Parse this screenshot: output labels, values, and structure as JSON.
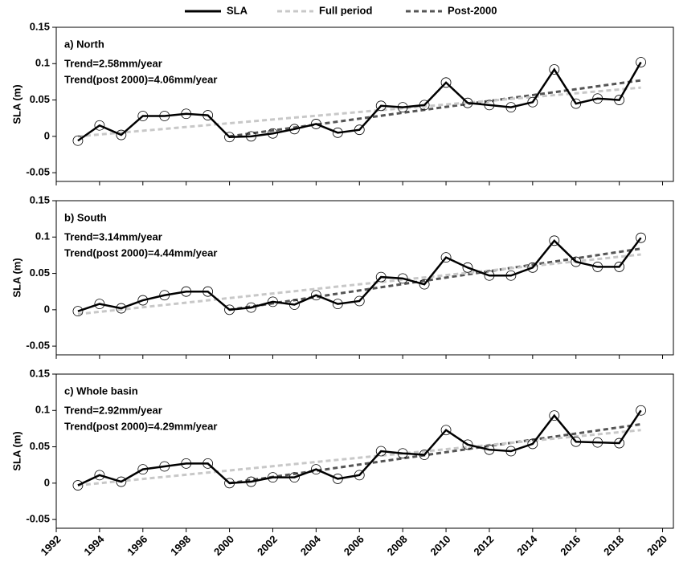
{
  "chart_data": [
    {
      "type": "line",
      "title": "a) North",
      "annotations": [
        "Trend=2.58mm/year",
        "Trend(post 2000)=4.06mm/year"
      ],
      "ylabel": "SLA (m)",
      "xlim": [
        1992,
        2020.5
      ],
      "xticks": [
        1992,
        1994,
        1996,
        1998,
        2000,
        2002,
        2004,
        2006,
        2008,
        2010,
        2012,
        2014,
        2016,
        2018,
        2020
      ],
      "ylim": [
        -0.062,
        0.15
      ],
      "yticks": [
        0.15,
        0.1,
        0.05,
        0,
        -0.05
      ],
      "series": [
        {
          "name": "SLA",
          "color": "#000000",
          "dash": "solid",
          "markers": true,
          "x": [
            1993,
            1994,
            1995,
            1996,
            1997,
            1998,
            1999,
            2000,
            2001,
            2002,
            2003,
            2004,
            2005,
            2006,
            2007,
            2008,
            2009,
            2010,
            2011,
            2012,
            2013,
            2014,
            2015,
            2016,
            2017,
            2018,
            2019
          ],
          "values": [
            -0.006,
            0.015,
            0.002,
            0.028,
            0.028,
            0.031,
            0.029,
            -0.001,
            0.0,
            0.004,
            0.01,
            0.017,
            0.005,
            0.009,
            0.042,
            0.04,
            0.043,
            0.074,
            0.046,
            0.043,
            0.04,
            0.047,
            0.092,
            0.045,
            0.052,
            0.05,
            0.102
          ]
        },
        {
          "name": "Full period",
          "color": "#c8c8c8",
          "dash": "dashed",
          "x": [
            1993,
            2019
          ],
          "values": [
            0.0,
            0.067
          ]
        },
        {
          "name": "Post-2000",
          "color": "#555555",
          "dash": "dashed",
          "x": [
            2000,
            2019
          ],
          "values": [
            0.0,
            0.077
          ]
        }
      ]
    },
    {
      "type": "line",
      "title": "b) South",
      "annotations": [
        "Trend=3.14mm/year",
        "Trend(post 2000)=4.44mm/year"
      ],
      "ylabel": "SLA (m)",
      "xlim": [
        1992,
        2020.5
      ],
      "xticks": [
        1992,
        1994,
        1996,
        1998,
        2000,
        2002,
        2004,
        2006,
        2008,
        2010,
        2012,
        2014,
        2016,
        2018,
        2020
      ],
      "ylim": [
        -0.062,
        0.15
      ],
      "yticks": [
        0.15,
        0.1,
        0.05,
        0,
        -0.05
      ],
      "series": [
        {
          "color": "#000000",
          "dash": "solid",
          "markers": true,
          "x": [
            1993,
            1994,
            1995,
            1996,
            1997,
            1998,
            1999,
            2000,
            2001,
            2002,
            2003,
            2004,
            2005,
            2006,
            2007,
            2008,
            2009,
            2010,
            2011,
            2012,
            2013,
            2014,
            2015,
            2016,
            2017,
            2018,
            2019
          ],
          "values": [
            -0.002,
            0.008,
            0.002,
            0.013,
            0.02,
            0.025,
            0.025,
            0.0,
            0.003,
            0.011,
            0.007,
            0.02,
            0.008,
            0.012,
            0.045,
            0.043,
            0.035,
            0.072,
            0.058,
            0.047,
            0.047,
            0.058,
            0.095,
            0.066,
            0.059,
            0.059,
            0.099
          ]
        },
        {
          "color": "#c8c8c8",
          "dash": "dashed",
          "x": [
            1993,
            2019
          ],
          "values": [
            -0.006,
            0.076
          ]
        },
        {
          "color": "#555555",
          "dash": "dashed",
          "x": [
            2000,
            2019
          ],
          "values": [
            0.0,
            0.084
          ]
        }
      ]
    },
    {
      "type": "line",
      "title": "c) Whole basin",
      "annotations": [
        "Trend=2.92mm/year",
        "Trend(post 2000)=4.29mm/year"
      ],
      "ylabel": "SLA (m)",
      "xlim": [
        1992,
        2020.5
      ],
      "xticks": [
        1992,
        1994,
        1996,
        1998,
        2000,
        2002,
        2004,
        2006,
        2008,
        2010,
        2012,
        2014,
        2016,
        2018,
        2020
      ],
      "ylim": [
        -0.062,
        0.15
      ],
      "yticks": [
        0.15,
        0.1,
        0.05,
        0,
        -0.05
      ],
      "series": [
        {
          "color": "#000000",
          "dash": "solid",
          "markers": true,
          "x": [
            1993,
            1994,
            1995,
            1996,
            1997,
            1998,
            1999,
            2000,
            2001,
            2002,
            2003,
            2004,
            2005,
            2006,
            2007,
            2008,
            2009,
            2010,
            2011,
            2012,
            2013,
            2014,
            2015,
            2016,
            2017,
            2018,
            2019
          ],
          "values": [
            -0.003,
            0.011,
            0.002,
            0.019,
            0.023,
            0.027,
            0.027,
            0.0,
            0.002,
            0.008,
            0.008,
            0.019,
            0.006,
            0.011,
            0.044,
            0.041,
            0.039,
            0.073,
            0.053,
            0.046,
            0.044,
            0.054,
            0.093,
            0.057,
            0.056,
            0.055,
            0.1
          ]
        },
        {
          "color": "#c8c8c8",
          "dash": "dashed",
          "x": [
            1993,
            2019
          ],
          "values": [
            -0.003,
            0.073
          ]
        },
        {
          "color": "#555555",
          "dash": "dashed",
          "x": [
            2000,
            2019
          ],
          "values": [
            0.0,
            0.081
          ]
        }
      ]
    }
  ]
}
